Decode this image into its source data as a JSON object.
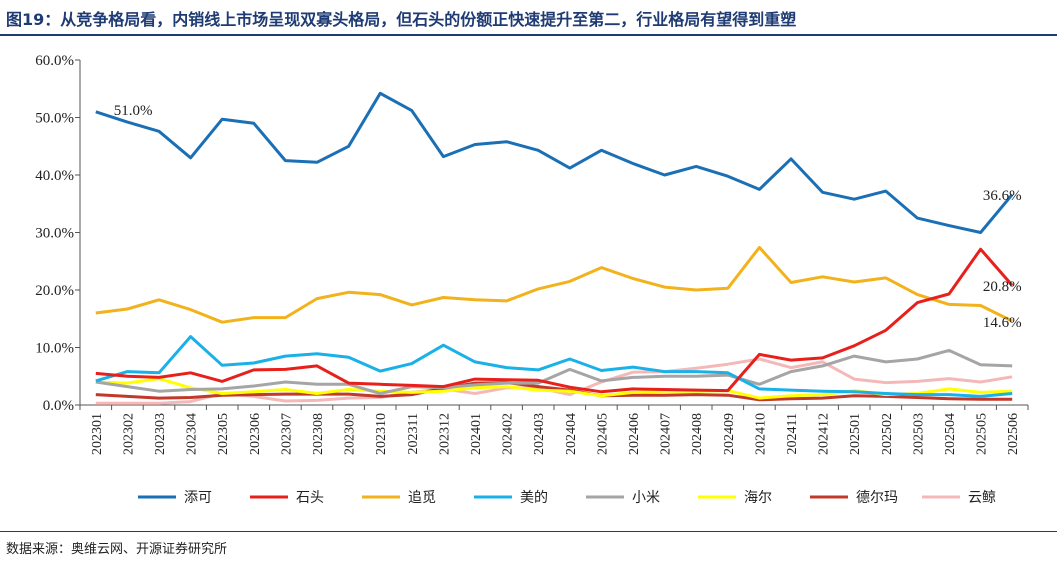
{
  "header": {
    "title": "图19：从竞争格局看，内销线上市场呈现双寡头格局，但石头的份额正快速提升至第二，行业格局有望得到重塑"
  },
  "footer": {
    "source": "数据来源：奥维云网、开源证券研究所"
  },
  "chart_data": {
    "type": "line",
    "title": "图19：从竞争格局看，内销线上市场呈现双寡头格局，但石头的份额正快速提升至第二，行业格局有望得到重塑",
    "xlabel": "",
    "ylabel": "",
    "ylim": [
      0,
      60
    ],
    "y_ticks": [
      "0.0%",
      "10.0%",
      "20.0%",
      "30.0%",
      "40.0%",
      "50.0%",
      "60.0%"
    ],
    "grid": false,
    "legend_position": "bottom",
    "categories": [
      "202301",
      "202302",
      "202303",
      "202304",
      "202305",
      "202306",
      "202307",
      "202308",
      "202309",
      "202310",
      "202311",
      "202312",
      "202401",
      "202402",
      "202403",
      "202404",
      "202405",
      "202406",
      "202407",
      "202408",
      "202409",
      "202410",
      "202411",
      "202412",
      "202501",
      "202502",
      "202503",
      "202504",
      "202505",
      "202506"
    ],
    "series": [
      {
        "name": "添可",
        "color": "#1a6fb5",
        "values": [
          51.0,
          49.2,
          47.6,
          43.0,
          49.7,
          49.0,
          42.5,
          42.2,
          45.0,
          54.2,
          51.2,
          43.2,
          45.3,
          45.8,
          44.3,
          41.2,
          44.3,
          42.0,
          40.0,
          41.5,
          39.8,
          37.5,
          42.8,
          37.0,
          35.8,
          37.2,
          32.5,
          31.2,
          30.0,
          36.6
        ]
      },
      {
        "name": "石头",
        "color": "#e8201c",
        "values": [
          5.5,
          5.0,
          4.8,
          5.6,
          4.1,
          6.1,
          6.2,
          6.8,
          3.8,
          3.6,
          3.4,
          3.2,
          4.5,
          4.4,
          4.3,
          3.1,
          2.3,
          2.8,
          2.7,
          2.6,
          2.5,
          8.8,
          7.8,
          8.2,
          10.3,
          13.0,
          17.8,
          19.3,
          27.1,
          20.8
        ]
      },
      {
        "name": "追觅",
        "color": "#f2b21b",
        "values": [
          16.0,
          16.7,
          18.3,
          16.6,
          14.4,
          15.2,
          15.2,
          18.5,
          19.6,
          19.2,
          17.4,
          18.7,
          18.3,
          18.1,
          20.2,
          21.5,
          23.9,
          22.0,
          20.5,
          20.0,
          20.3,
          27.4,
          21.3,
          22.3,
          21.4,
          22.1,
          19.2,
          17.5,
          17.3,
          14.6
        ]
      },
      {
        "name": "美的",
        "color": "#1ab0e8",
        "values": [
          4.2,
          5.8,
          5.6,
          11.9,
          6.9,
          7.3,
          8.5,
          8.9,
          8.3,
          5.9,
          7.2,
          10.4,
          7.5,
          6.5,
          6.1,
          8.0,
          6.0,
          6.6,
          5.8,
          5.8,
          5.6,
          2.8,
          2.6,
          2.4,
          2.3,
          2.0,
          1.8,
          1.8,
          1.5,
          2.0
        ]
      },
      {
        "name": "小米",
        "color": "#a5a5a5",
        "values": [
          4.0,
          3.2,
          2.4,
          2.7,
          2.8,
          3.3,
          4.0,
          3.6,
          3.6,
          2.0,
          3.2,
          3.0,
          3.5,
          3.8,
          3.8,
          6.2,
          4.2,
          4.8,
          5.0,
          5.0,
          5.2,
          3.6,
          5.8,
          6.8,
          8.5,
          7.5,
          8.0,
          9.5,
          7.0,
          6.8
        ]
      },
      {
        "name": "海尔",
        "color": "#ffff00",
        "values": [
          4.0,
          3.8,
          4.6,
          3.0,
          2.0,
          2.3,
          2.7,
          2.0,
          2.7,
          2.4,
          2.2,
          2.4,
          3.0,
          3.2,
          2.6,
          2.4,
          1.6,
          2.2,
          2.4,
          2.4,
          2.5,
          1.2,
          1.6,
          1.8,
          2.5,
          1.8,
          2.0,
          2.8,
          2.2,
          2.4
        ]
      },
      {
        "name": "德尔玛",
        "color": "#c0392b",
        "values": [
          1.8,
          1.5,
          1.2,
          1.3,
          1.7,
          1.8,
          1.9,
          1.9,
          1.9,
          1.5,
          1.8,
          2.9,
          3.8,
          3.9,
          3.2,
          2.6,
          1.6,
          1.7,
          1.7,
          1.8,
          1.7,
          0.9,
          1.1,
          1.2,
          1.6,
          1.5,
          1.3,
          1.1,
          1.0,
          1.0
        ]
      },
      {
        "name": "云鲸",
        "color": "#f4b8b8",
        "values": [
          0.3,
          0.3,
          0.3,
          0.6,
          2.0,
          1.5,
          0.7,
          0.8,
          1.2,
          1.3,
          2.2,
          2.8,
          2.0,
          3.0,
          3.0,
          1.8,
          4.0,
          5.7,
          5.8,
          6.4,
          7.1,
          8.0,
          6.5,
          7.5,
          4.5,
          3.9,
          4.1,
          4.6,
          4.0,
          4.9
        ]
      }
    ],
    "data_labels": [
      {
        "series": "添可",
        "category": "202301",
        "text": "51.0%"
      },
      {
        "series": "添可",
        "category": "202506",
        "text": "36.6%"
      },
      {
        "series": "石头",
        "category": "202506",
        "text": "20.8%"
      },
      {
        "series": "追觅",
        "category": "202506",
        "text": "14.6%"
      }
    ]
  }
}
